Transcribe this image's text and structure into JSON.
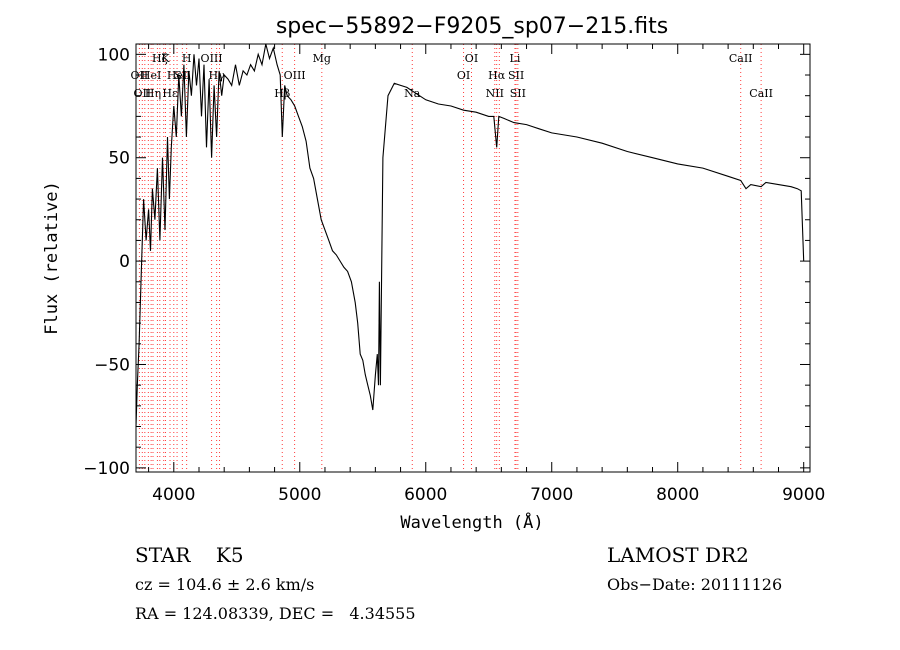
{
  "chart_data": {
    "type": "line",
    "title": "spec−55892−F9205_sp07−215.fits",
    "xlabel": "Wavelength (Å)",
    "ylabel": "Flux (relative)",
    "xlim": [
      3700,
      9050
    ],
    "ylim": [
      -102,
      105
    ],
    "x_ticks": [
      4000,
      5000,
      6000,
      7000,
      8000,
      9000
    ],
    "x_tick_labels": [
      "4000",
      "5000",
      "6000",
      "7000",
      "8000",
      "9000"
    ],
    "y_ticks": [
      -100,
      -50,
      0,
      50,
      100
    ],
    "y_tick_labels": [
      "−100",
      "−50",
      "0",
      "50",
      "100"
    ],
    "grid": false,
    "spectrum": {
      "x": [
        3700,
        3710,
        3725,
        3740,
        3760,
        3780,
        3800,
        3815,
        3830,
        3850,
        3870,
        3890,
        3910,
        3930,
        3950,
        3965,
        3980,
        4000,
        4020,
        4040,
        4060,
        4080,
        4100,
        4120,
        4140,
        4160,
        4180,
        4200,
        4220,
        4240,
        4260,
        4280,
        4300,
        4320,
        4340,
        4360,
        4380,
        4400,
        4430,
        4460,
        4490,
        4520,
        4550,
        4580,
        4610,
        4640,
        4670,
        4700,
        4730,
        4760,
        4790,
        4820,
        4845,
        4861,
        4880,
        4900,
        4930,
        4960,
        4990,
        5020,
        5050,
        5080,
        5110,
        5140,
        5170,
        5200,
        5230,
        5260,
        5290,
        5320,
        5350,
        5380,
        5410,
        5440,
        5460,
        5480,
        5500,
        5520,
        5540,
        5560,
        5580,
        5600,
        5615,
        5625,
        5632,
        5640,
        5660,
        5700,
        5750,
        5800,
        5850,
        5900,
        5950,
        6000,
        6100,
        6200,
        6300,
        6400,
        6500,
        6540,
        6563,
        6580,
        6620,
        6700,
        6800,
        6900,
        7000,
        7200,
        7400,
        7600,
        7800,
        8000,
        8200,
        8400,
        8500,
        8542,
        8580,
        8662,
        8700,
        8800,
        8900,
        8950,
        8980,
        9000
      ],
      "y": [
        -80,
        -60,
        -40,
        -10,
        30,
        10,
        25,
        5,
        35,
        20,
        45,
        10,
        50,
        15,
        60,
        30,
        55,
        75,
        60,
        90,
        70,
        95,
        60,
        92,
        80,
        100,
        85,
        98,
        70,
        95,
        55,
        88,
        50,
        85,
        60,
        92,
        80,
        90,
        88,
        85,
        95,
        85,
        92,
        90,
        95,
        92,
        100,
        95,
        105,
        98,
        103,
        95,
        90,
        60,
        85,
        80,
        78,
        75,
        70,
        65,
        58,
        45,
        40,
        30,
        20,
        15,
        10,
        5,
        3,
        0,
        -3,
        -5,
        -10,
        -20,
        -30,
        -45,
        -48,
        -55,
        -60,
        -65,
        -72,
        -55,
        -45,
        -60,
        -10,
        -60,
        50,
        80,
        86,
        85,
        84,
        82,
        80,
        78,
        76,
        75,
        73,
        72,
        70,
        70,
        55,
        70,
        69,
        67,
        66,
        64,
        62,
        60,
        57,
        53,
        50,
        47,
        45,
        41,
        39,
        35,
        37,
        36,
        38,
        37,
        36,
        35,
        34,
        0
      ]
    },
    "lines": [
      {
        "wl": 3727,
        "label": "OII",
        "row": 2
      },
      {
        "wl": 3750,
        "label": "OII",
        "row": 3
      },
      {
        "wl": 3770,
        "label": "",
        "row": 0
      },
      {
        "wl": 3798,
        "label": "",
        "row": 0
      },
      {
        "wl": 3820,
        "label": "HeI",
        "row": 2
      },
      {
        "wl": 3835,
        "label": "Hη",
        "row": 3
      },
      {
        "wl": 3870,
        "label": "",
        "row": 0
      },
      {
        "wl": 3889,
        "label": "Hζ",
        "row": 1
      },
      {
        "wl": 3920,
        "label": "",
        "row": 0
      },
      {
        "wl": 3934,
        "label": "K",
        "row": 1
      },
      {
        "wl": 3970,
        "label": "Hε",
        "row": 3
      },
      {
        "wl": 4000,
        "label": "",
        "row": 0
      },
      {
        "wl": 4026,
        "label": "HeI",
        "row": 2
      },
      {
        "wl": 4068,
        "label": "SII",
        "row": 2
      },
      {
        "wl": 4102,
        "label": "H",
        "row": 1
      },
      {
        "wl": 4300,
        "label": "OIII",
        "row": 1
      },
      {
        "wl": 4340,
        "label": "Hγ",
        "row": 2
      },
      {
        "wl": 4363,
        "label": "",
        "row": 0
      },
      {
        "wl": 4861,
        "label": "Hβ",
        "row": 3
      },
      {
        "wl": 4959,
        "label": "OIII",
        "row": 2
      },
      {
        "wl": 5175,
        "label": "Mg",
        "row": 1
      },
      {
        "wl": 5893,
        "label": "Na",
        "row": 3
      },
      {
        "wl": 6300,
        "label": "OI",
        "row": 2
      },
      {
        "wl": 6363,
        "label": "OI",
        "row": 1
      },
      {
        "wl": 6548,
        "label": "NII",
        "row": 3
      },
      {
        "wl": 6563,
        "label": "Hα",
        "row": 2
      },
      {
        "wl": 6584,
        "label": "",
        "row": 0
      },
      {
        "wl": 6708,
        "label": "Li",
        "row": 1
      },
      {
        "wl": 6717,
        "label": "SII",
        "row": 2
      },
      {
        "wl": 6731,
        "label": "SII",
        "row": 3
      },
      {
        "wl": 8500,
        "label": "CaII",
        "row": 1
      },
      {
        "wl": 8662,
        "label": "CaII",
        "row": 3
      }
    ],
    "colors": {
      "spectrum": "#000000",
      "lines": "#ff3b3b",
      "axes": "#000000"
    }
  },
  "info": {
    "star_type": "STAR    K5",
    "survey": "LAMOST DR2",
    "cz": "cz = 104.6 ± 2.6 km/s",
    "obs_date": "Obs−Date: 20111126",
    "radec": "RA = 124.08339, DEC =   4.34555"
  }
}
